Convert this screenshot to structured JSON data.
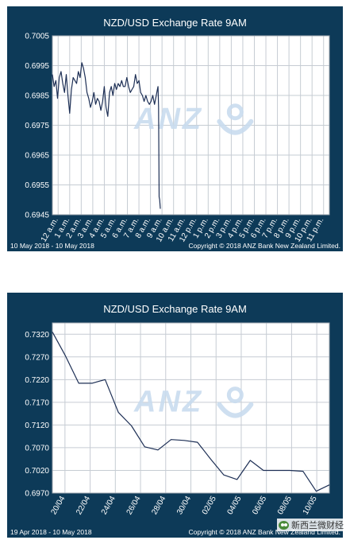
{
  "colors": {
    "frame": "#0d3a58",
    "plot_bg": "#ffffff",
    "grid": "#c6ccd3",
    "line": "#1d2f55",
    "text": "#ffffff",
    "logo": "#c9dcef"
  },
  "logo_text": "ANZ",
  "watermark_text": "新西兰微财经",
  "chart_data": [
    {
      "type": "line",
      "title": "NZD/USD Exchange Rate  9AM",
      "footer_left": "10 May 2018 - 10 May 2018",
      "footer_right": "Copyright © 2018 ANZ Bank New Zealand Limited.",
      "ylim": [
        0.6945,
        0.7005
      ],
      "yticks": [
        "0.7005",
        "0.6995",
        "0.6985",
        "0.6975",
        "0.6965",
        "0.6955",
        "0.6945"
      ],
      "xticks": [
        "12 a.m.",
        "1 a.m.",
        "2 a.m.",
        "3 a.m.",
        "4 a.m.",
        "5 a.m.",
        "6 a.m.",
        "7 a.m.",
        "8 a.m.",
        "9 a.m.",
        "10 a.m.",
        "11 a.m.",
        "12 p.m.",
        "1 p.m.",
        "2 p.m.",
        "3 p.m.",
        "4 p.m.",
        "5 p.m.",
        "6 p.m.",
        "7 p.m.",
        "8 p.m.",
        "9 p.m.",
        "10 p.m.",
        "11 p.m."
      ],
      "xlim": [
        0,
        24
      ],
      "x": [
        0,
        0.15,
        0.3,
        0.45,
        0.6,
        0.75,
        0.9,
        1.05,
        1.2,
        1.35,
        1.5,
        1.65,
        1.8,
        1.95,
        2.1,
        2.25,
        2.4,
        2.55,
        2.7,
        2.85,
        3.0,
        3.15,
        3.3,
        3.45,
        3.6,
        3.75,
        3.9,
        4.05,
        4.2,
        4.35,
        4.5,
        4.65,
        4.8,
        4.95,
        5.1,
        5.25,
        5.4,
        5.55,
        5.7,
        5.85,
        6.0,
        6.15,
        6.3,
        6.45,
        6.6,
        6.75,
        6.9,
        7.05,
        7.2,
        7.35,
        7.5,
        7.65,
        7.8,
        7.95,
        8.1,
        8.25,
        8.4,
        8.55,
        8.7,
        8.85,
        9.0,
        9.1,
        9.15,
        9.2,
        9.25,
        9.3,
        9.35
      ],
      "y": [
        0.6992,
        0.6988,
        0.699,
        0.6984,
        0.6991,
        0.6993,
        0.6989,
        0.6986,
        0.6992,
        0.6985,
        0.6979,
        0.6987,
        0.6991,
        0.699,
        0.6989,
        0.6993,
        0.6991,
        0.6996,
        0.6994,
        0.6991,
        0.6986,
        0.6984,
        0.6981,
        0.6983,
        0.6986,
        0.6982,
        0.6984,
        0.6983,
        0.698,
        0.6983,
        0.6988,
        0.6981,
        0.6978,
        0.6986,
        0.6988,
        0.6985,
        0.6989,
        0.6987,
        0.6989,
        0.6988,
        0.699,
        0.6988,
        0.6988,
        0.6991,
        0.6988,
        0.6986,
        0.6987,
        0.6988,
        0.6992,
        0.6989,
        0.699,
        0.6986,
        0.6985,
        0.6983,
        0.6985,
        0.6983,
        0.6982,
        0.6983,
        0.6985,
        0.6982,
        0.6985,
        0.6987,
        0.6988,
        0.6981,
        0.6951,
        0.695,
        0.6947
      ]
    },
    {
      "type": "line",
      "title": "NZD/USD Exchange Rate  9AM",
      "footer_left": "19 Apr 2018 - 10 May 2018",
      "footer_right": "Copyright © 2018 ANZ Bank New Zealand Limited.",
      "ylim": [
        0.697,
        0.7345
      ],
      "yticks": [
        "0.7320",
        "0.7270",
        "0.7220",
        "0.7170",
        "0.7120",
        "0.7070",
        "0.7020",
        "0.6970"
      ],
      "xticks": [
        "20/04",
        "22/04",
        "24/04",
        "26/04",
        "28/04",
        "30/04",
        "02/05",
        "04/05",
        "06/05",
        "08/05",
        "10/05"
      ],
      "xlim": [
        0,
        21
      ],
      "x": [
        0,
        1,
        2,
        3,
        4,
        5,
        6,
        7,
        8,
        9,
        10,
        11,
        12,
        13,
        14,
        15,
        16,
        17,
        18,
        19,
        20,
        21
      ],
      "y": [
        0.7325,
        0.7272,
        0.7212,
        0.7212,
        0.722,
        0.7148,
        0.7118,
        0.7072,
        0.7065,
        0.7088,
        0.7086,
        0.7082,
        0.7045,
        0.701,
        0.7,
        0.7042,
        0.702,
        0.702,
        0.702,
        0.7018,
        0.6974,
        0.6988
      ]
    }
  ]
}
